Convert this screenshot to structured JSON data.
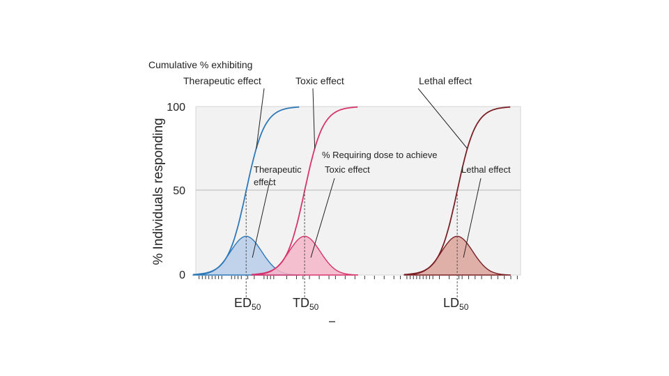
{
  "chart_data": {
    "type": "line",
    "title": "Cumulative % exhibiting",
    "ylabel": "% Individuals responding",
    "xlabel": "",
    "ylim": [
      0,
      100
    ],
    "yticks": [
      {
        "value": 0,
        "label": "0"
      },
      {
        "value": 50,
        "label": "50"
      },
      {
        "value": 100,
        "label": "100"
      }
    ],
    "xlim": [
      0,
      100
    ],
    "grid": "y-at-50",
    "series": [
      {
        "name": "Therapeutic effect",
        "color": "#2e78b7",
        "fill": "#b8cdea",
        "dose50": 15.5,
        "spread": 4.8,
        "cumulative_label": "Therapeutic effect",
        "cumulative_label_x": 15.5,
        "distribution_label": [
          "Therapeutic",
          "effect"
        ],
        "marker_label": "ED",
        "marker_sub": "50"
      },
      {
        "name": "Toxic effect",
        "color": "#d6336c",
        "fill": "#f4b6c8",
        "dose50": 33.5,
        "spread": 4.8,
        "cumulative_label": "Toxic effect",
        "cumulative_label_x": 33.5,
        "distribution_label": [
          "Toxic effect"
        ],
        "marker_label": "TD",
        "marker_sub": "50"
      },
      {
        "name": "Lethal effect",
        "color": "#7a1f24",
        "fill": "#dca49b",
        "dose50": 80.5,
        "spread": 4.8,
        "cumulative_label": "Lethal effect",
        "cumulative_label_x": 80.5,
        "distribution_label": [
          "Lethal effect"
        ],
        "marker_label": "LD",
        "marker_sub": "50"
      }
    ],
    "distribution_peak_percent": 23,
    "distribution_caption": "% Requiring dose to achieve",
    "x_ticks_minor": [
      1,
      2,
      3,
      4,
      5,
      6,
      7,
      8,
      11,
      12,
      13,
      14,
      16,
      18,
      21,
      22,
      23,
      24,
      28,
      31,
      33,
      35,
      38,
      41,
      43,
      46,
      49,
      52,
      55,
      58,
      61,
      63,
      65,
      66,
      67,
      68,
      69,
      70,
      71,
      72,
      73,
      75,
      78,
      81,
      82,
      84,
      86,
      88,
      91,
      93,
      95,
      97,
      99
    ]
  }
}
